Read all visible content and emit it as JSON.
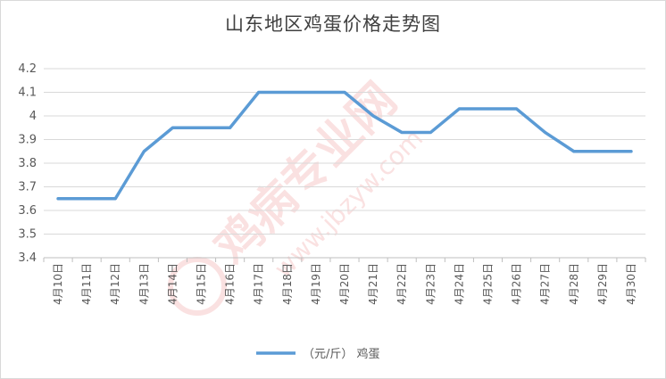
{
  "chart_data": {
    "type": "line",
    "title": "山东地区鸡蛋价格走势图",
    "categories": [
      "4月10日",
      "4月11日",
      "4月12日",
      "4月13日",
      "4月14日",
      "4月15日",
      "4月16日",
      "4月17日",
      "4月18日",
      "4月19日",
      "4月20日",
      "4月21日",
      "4月22日",
      "4月23日",
      "4月24日",
      "4月25日",
      "4月26日",
      "4月27日",
      "4月28日",
      "4月29日",
      "4月30日"
    ],
    "series": [
      {
        "name": "（元/斤） 鸡蛋",
        "color": "#5b9bd5",
        "values": [
          3.65,
          3.65,
          3.65,
          3.85,
          3.95,
          3.95,
          3.95,
          4.1,
          4.1,
          4.1,
          4.1,
          4.0,
          3.93,
          3.93,
          4.03,
          4.03,
          4.03,
          3.93,
          3.85,
          3.85,
          3.85
        ]
      }
    ],
    "ylim": [
      3.4,
      4.2
    ],
    "yticks": [
      "3.4",
      "3.5",
      "3.6",
      "3.7",
      "3.8",
      "3.9",
      "4",
      "4.1",
      "4.2"
    ],
    "grid": true,
    "legend": "bottom"
  },
  "watermark": {
    "text": "鸡病专业网",
    "url": "www.jbzyw.com"
  }
}
